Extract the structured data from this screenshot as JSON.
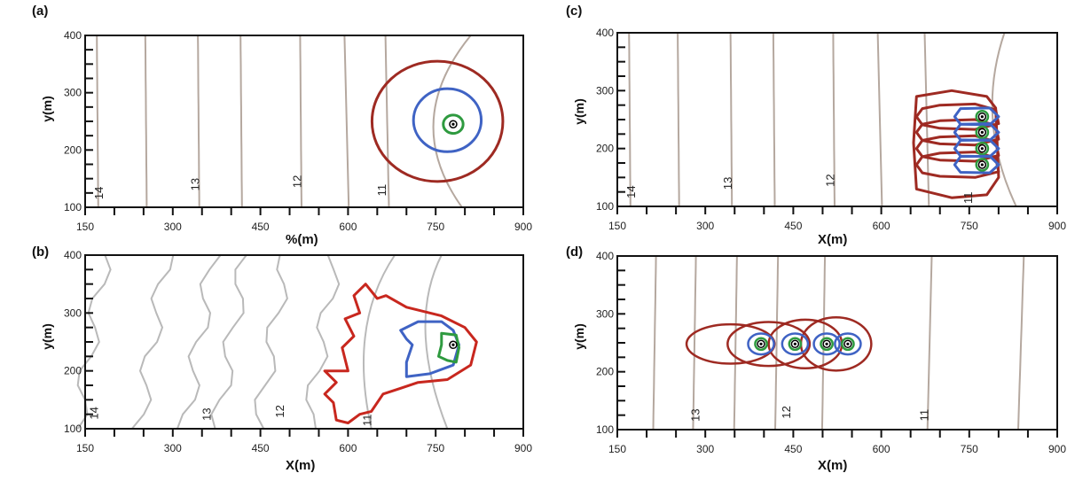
{
  "panels": [
    {
      "id": "a",
      "letter": "(a)",
      "xlabel": "%(m)",
      "ylabel": "y(m)",
      "xticks": [
        "150",
        "300",
        "450",
        "600",
        "750",
        "900"
      ],
      "yticks": [
        "100",
        "200",
        "300",
        "400"
      ],
      "contour_labels": [
        {
          "text": "14",
          "x": 180,
          "y": 125
        },
        {
          "text": "13",
          "x": 345,
          "y": 140
        },
        {
          "text": "12",
          "x": 520,
          "y": 145
        },
        {
          "text": "11",
          "x": 665,
          "y": 130
        }
      ]
    },
    {
      "id": "b",
      "letter": "(b)",
      "xlabel": "X(m)",
      "ylabel": "y(m)",
      "xticks": [
        "150",
        "300",
        "450",
        "600",
        "750",
        "900"
      ],
      "yticks": [
        "100",
        "200",
        "300",
        "400"
      ],
      "contour_labels": [
        {
          "text": "14",
          "x": 172,
          "y": 127
        },
        {
          "text": "13",
          "x": 365,
          "y": 125
        },
        {
          "text": "12",
          "x": 490,
          "y": 130
        },
        {
          "text": "11",
          "x": 640,
          "y": 115
        }
      ]
    },
    {
      "id": "c",
      "letter": "(c)",
      "xlabel": "X(m)",
      "ylabel": "y(m)",
      "xticks": [
        "150",
        "300",
        "450",
        "600",
        "750",
        "900"
      ],
      "yticks": [
        "100",
        "200",
        "300",
        "400"
      ],
      "contour_labels": [
        {
          "text": "14",
          "x": 180,
          "y": 125
        },
        {
          "text": "13",
          "x": 345,
          "y": 140
        },
        {
          "text": "12",
          "x": 520,
          "y": 145
        },
        {
          "text": "11",
          "x": 755,
          "y": 115
        }
      ]
    },
    {
      "id": "d",
      "letter": "(d)",
      "xlabel": "X(m)",
      "ylabel": "y(m)",
      "xticks": [
        "150",
        "300",
        "450",
        "600",
        "750",
        "900"
      ],
      "yticks": [
        "100",
        "200",
        "300",
        "400"
      ],
      "contour_labels": [
        {
          "text": "13",
          "x": 290,
          "y": 125
        },
        {
          "text": "12",
          "x": 445,
          "y": 130
        },
        {
          "text": "11",
          "x": 680,
          "y": 125
        }
      ]
    }
  ],
  "colors": {
    "frame": "#111111",
    "contour_line": "#b5a89f",
    "contour_line_b": "#b9b9b9",
    "region_outer": "#9e2a22",
    "region_outer_b": "#c8271e",
    "region_middle": "#3f63c4",
    "region_inner": "#2e9a3f",
    "source_point": "#000000"
  }
}
